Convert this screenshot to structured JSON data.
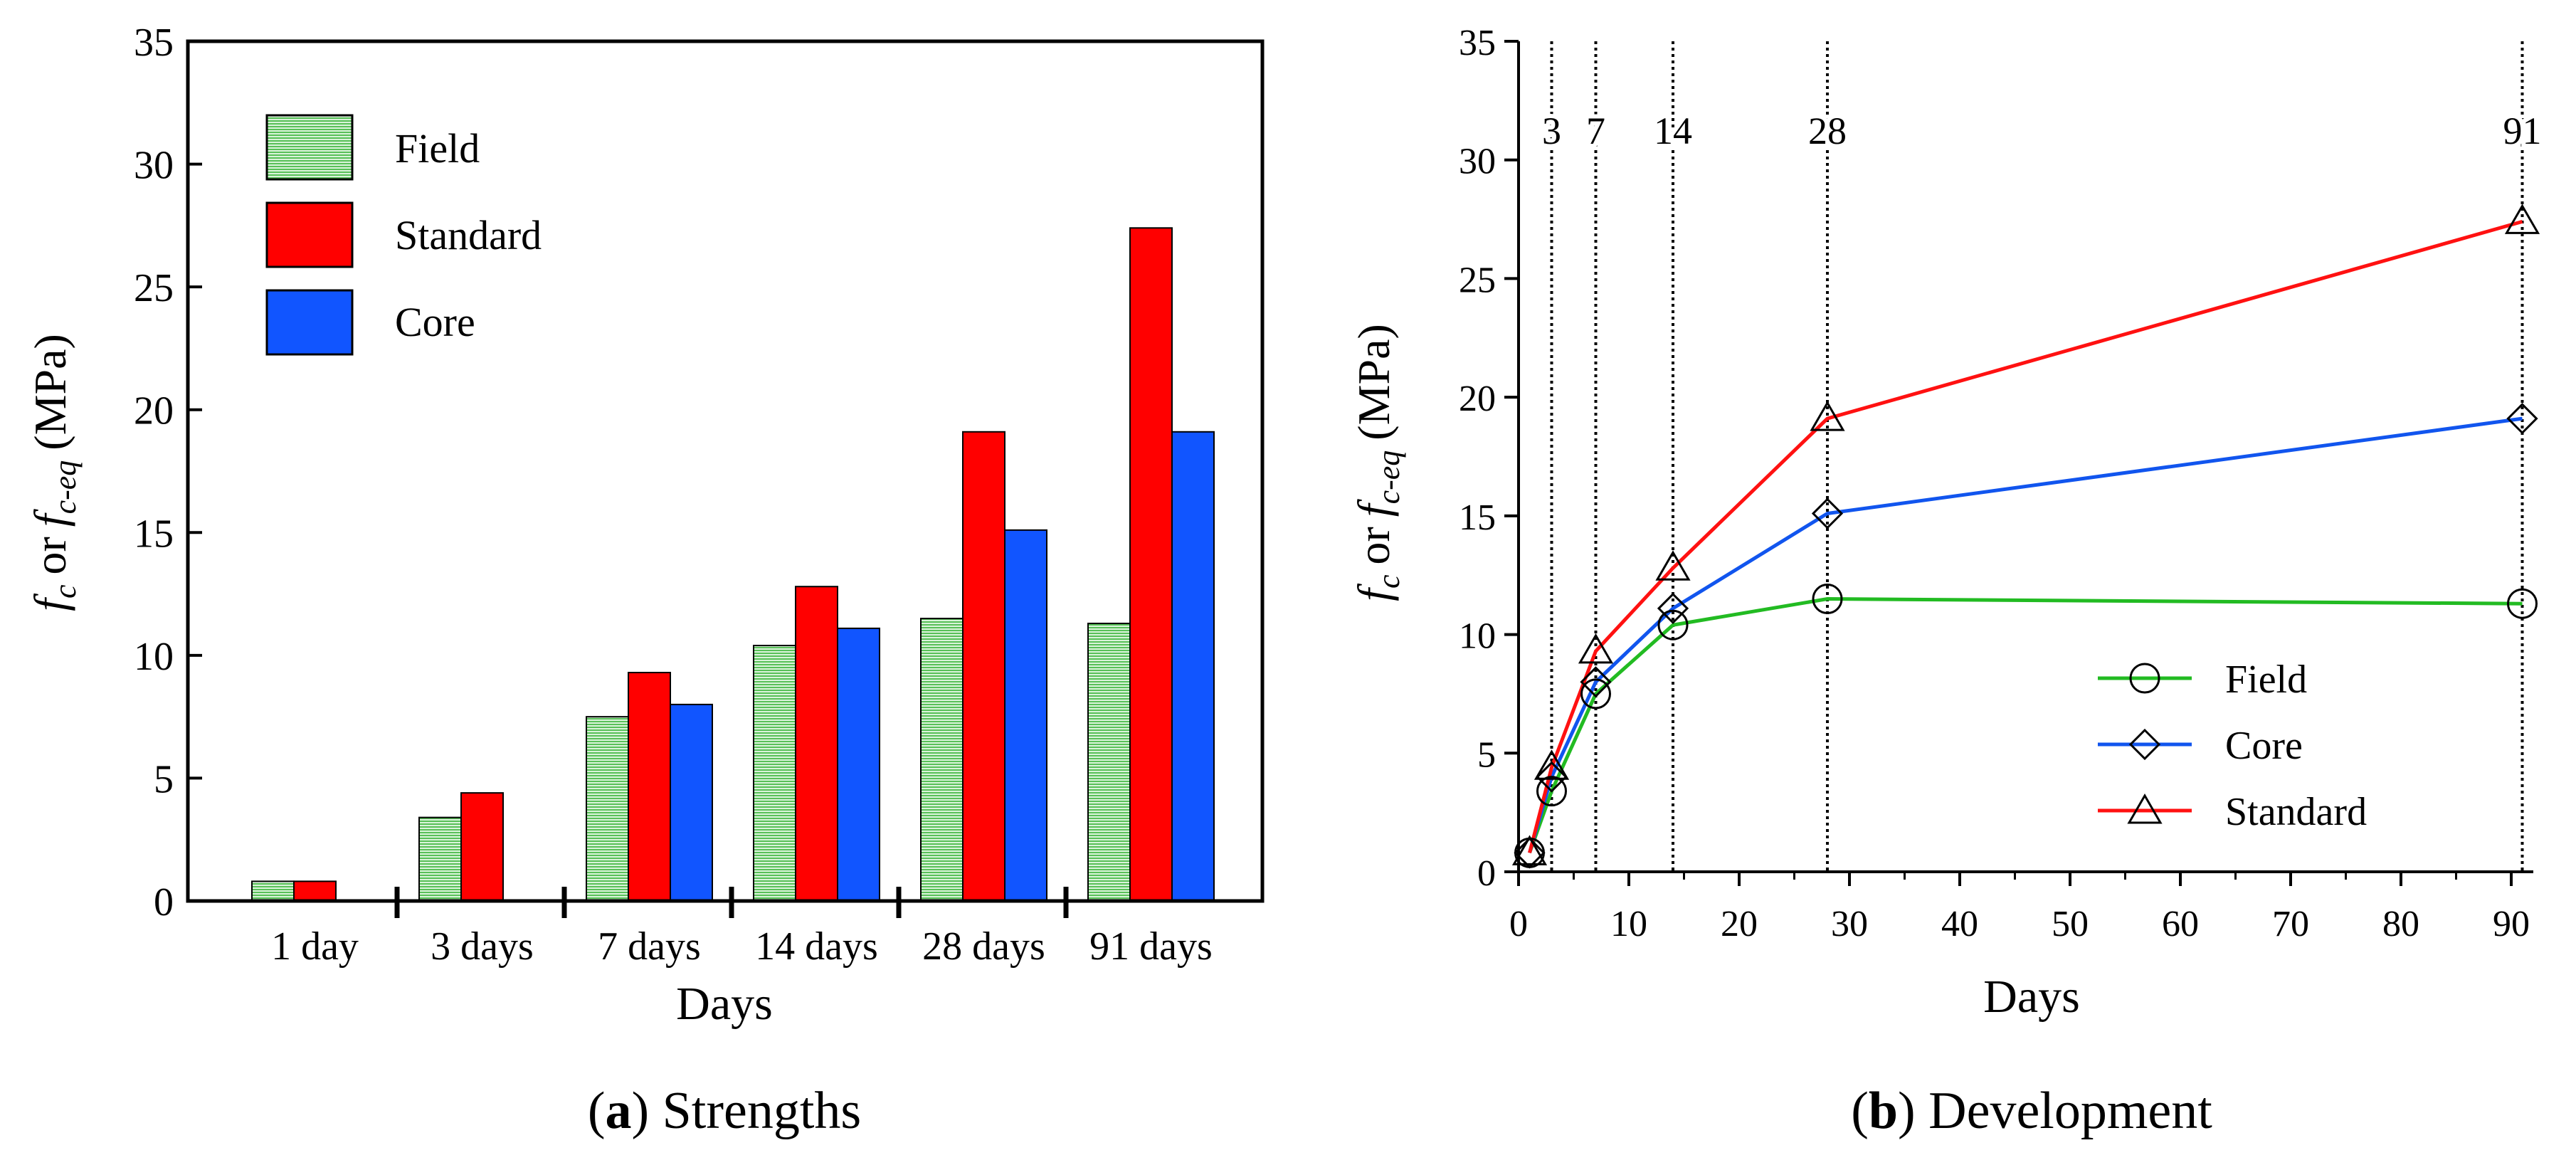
{
  "chart_data": [
    {
      "type": "bar",
      "title": "",
      "caption_letter": "a",
      "caption_text": "Strengths",
      "xlabel": "Days",
      "ylabel": "or",
      "ylabel_symbol_1": "f",
      "ylabel_sub_1": "c",
      "ylabel_symbol_2": "f",
      "ylabel_sub_2": "c-eq",
      "ylabel_unit": "(MPa)",
      "ylim": [
        0,
        35
      ],
      "yticks": [
        0,
        5,
        10,
        15,
        20,
        25,
        30,
        35
      ],
      "categories": [
        "1 day",
        "3 days",
        "7 days",
        "14 days",
        "28 days",
        "91 days"
      ],
      "series": [
        {
          "name": "Field",
          "color": "#8fd88f",
          "values": [
            0.8,
            3.4,
            7.5,
            10.4,
            11.5,
            11.3
          ]
        },
        {
          "name": "Standard",
          "color": "#ff0000",
          "values": [
            0.8,
            4.4,
            9.3,
            12.8,
            19.1,
            27.4
          ]
        },
        {
          "name": "Core",
          "color": "#1155ff",
          "values": [
            null,
            null,
            8.0,
            11.1,
            15.1,
            19.1
          ]
        }
      ],
      "legend_position": "top-left"
    },
    {
      "type": "line",
      "title": "",
      "caption_letter": "b",
      "caption_text": "Development",
      "xlabel": "Days",
      "ylabel": "or",
      "ylabel_symbol_1": "f",
      "ylabel_sub_1": "c",
      "ylabel_symbol_2": "f",
      "ylabel_sub_2": "c-eq",
      "ylabel_unit": "(MPa)",
      "xlim": [
        0,
        92
      ],
      "ylim": [
        0,
        35
      ],
      "xticks": [
        0,
        10,
        20,
        30,
        40,
        50,
        60,
        70,
        80,
        90
      ],
      "yticks": [
        0,
        5,
        10,
        15,
        20,
        25,
        30,
        35
      ],
      "reference_lines": [
        3,
        7,
        14,
        28,
        91
      ],
      "reference_labels": [
        "3",
        "7",
        "14",
        "28",
        "91"
      ],
      "series": [
        {
          "name": "Field",
          "color": "#22bb22",
          "marker": "circle",
          "x": [
            1,
            3,
            7,
            14,
            28,
            91
          ],
          "values": [
            0.8,
            3.4,
            7.5,
            10.4,
            11.5,
            11.3
          ]
        },
        {
          "name": "Core",
          "color": "#1155ee",
          "marker": "diamond",
          "x": [
            1,
            3,
            7,
            14,
            28,
            91
          ],
          "values": [
            0.8,
            4.0,
            8.0,
            11.1,
            15.1,
            19.1
          ]
        },
        {
          "name": "Standard",
          "color": "#ff1111",
          "marker": "triangle",
          "x": [
            1,
            3,
            7,
            14,
            28,
            91
          ],
          "values": [
            0.8,
            4.4,
            9.3,
            12.8,
            19.1,
            27.4
          ]
        }
      ],
      "legend_position": "bottom-right"
    }
  ]
}
